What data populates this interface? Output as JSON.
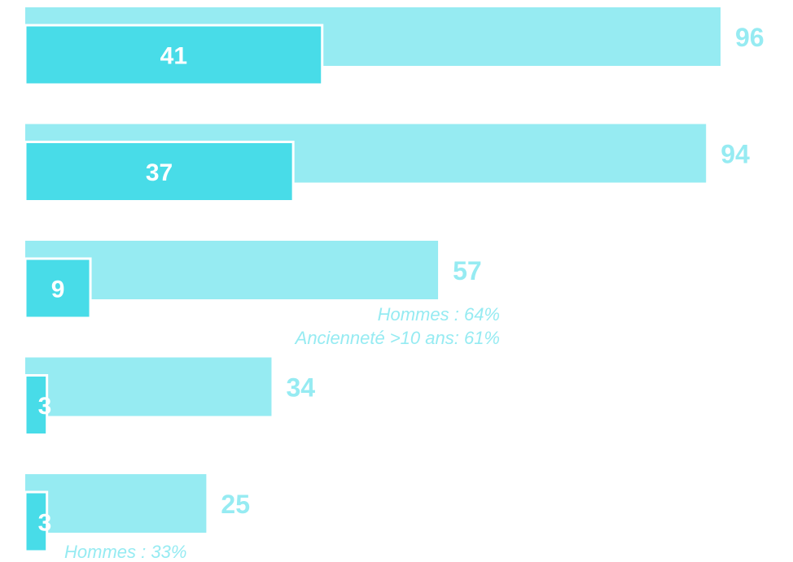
{
  "colors": {
    "total_bar": "#96EBF2",
    "sub_bar": "#48DCE8",
    "outline": "#ffffff",
    "value_label": "#96EBF2",
    "inner_label": "#ffffff",
    "annotation": "#96EBF2"
  },
  "chart_data": {
    "type": "bar",
    "orientation": "horizontal",
    "xlim": [
      0,
      96
    ],
    "grid": false,
    "legend": "none",
    "series": [
      {
        "values": [
          96,
          94,
          57,
          34,
          25
        ]
      },
      {
        "values": [
          41,
          37,
          9,
          3,
          3
        ]
      }
    ],
    "annotations": [
      {
        "row": 2,
        "lines": [
          "Hommes : 64%",
          "Ancienneté >10 ans: 61%"
        ]
      },
      {
        "row": 4,
        "lines": [
          "Hommes : 33%"
        ]
      }
    ]
  }
}
